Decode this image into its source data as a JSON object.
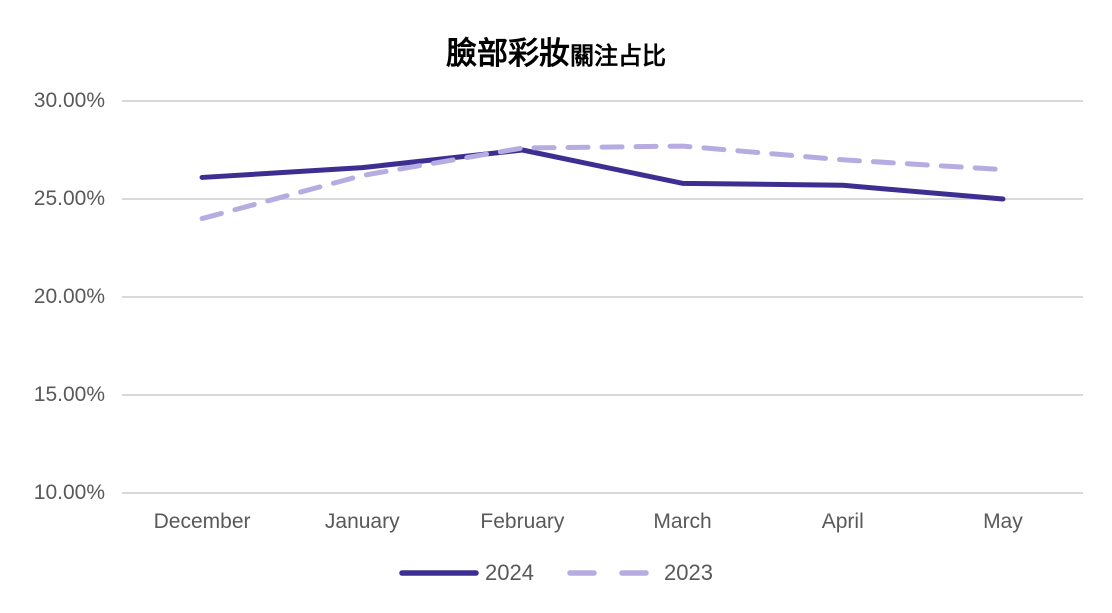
{
  "chart": {
    "title_main": "臉部彩妝",
    "title_sub": "關注占比"
  },
  "chart_data": {
    "type": "line",
    "title": "臉部彩妝關注占比",
    "xlabel": "",
    "ylabel": "",
    "categories": [
      "December",
      "January",
      "February",
      "March",
      "April",
      "May"
    ],
    "series": [
      {
        "name": "2024",
        "values": [
          26.1,
          26.6,
          27.5,
          25.8,
          25.7,
          25.0
        ],
        "color": "#3d2f91",
        "style": "solid"
      },
      {
        "name": "2023",
        "values": [
          24.0,
          26.2,
          27.6,
          27.7,
          27.0,
          26.5
        ],
        "color": "#b7ace1",
        "style": "dashed"
      }
    ],
    "ylim": [
      10,
      30
    ],
    "yticks": [
      30,
      25,
      20,
      15,
      10
    ],
    "ytick_labels": [
      "30.00%",
      "25.00%",
      "20.00%",
      "15.00%",
      "10.00%"
    ],
    "grid": "horizontal",
    "legend_position": "bottom",
    "colors": {
      "gridline": "#d9d9d9",
      "axis_text": "#595959",
      "title_text": "#000000",
      "background": "#ffffff"
    }
  }
}
